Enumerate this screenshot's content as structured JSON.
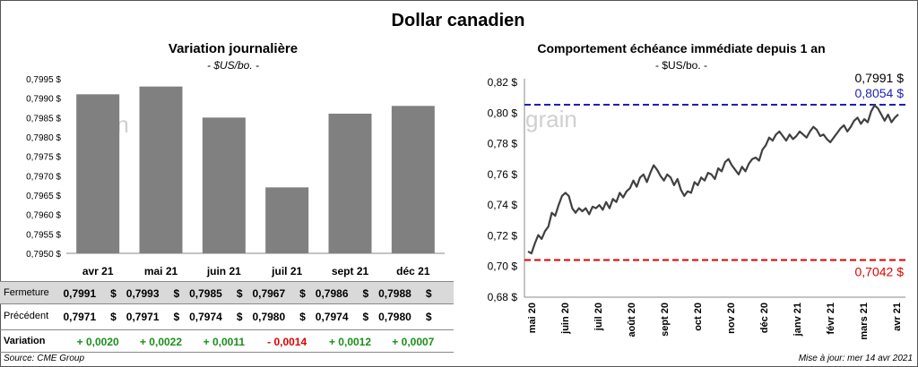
{
  "page": {
    "title": "Dollar canadien",
    "source": "Source: CME Group",
    "updated": "Mise à jour: mer 14 avr 2021"
  },
  "colors": {
    "bar": "#808080",
    "line": "#404040",
    "high": "#1f1fb4",
    "low": "#e00000",
    "positive": "#1a8f1a",
    "negative": "#e00000",
    "table_highlight": "#d9d9d9"
  },
  "chart_data": [
    {
      "type": "bar",
      "title": "Variation  journalière",
      "subtitle": "- $US/bo. -",
      "categories": [
        "avr 21",
        "mai 21",
        "juin 21",
        "juil 21",
        "sept 21",
        "déc 21"
      ],
      "values": [
        0.7991,
        0.7993,
        0.7985,
        0.7967,
        0.7986,
        0.7988
      ],
      "ylim": [
        0.795,
        0.7995
      ],
      "yticks": [
        "0,7950 $",
        "0,7955 $",
        "0,7960 $",
        "0,7965 $",
        "0,7970 $",
        "0,7975 $",
        "0,7980 $",
        "0,7985 $",
        "0,7990 $",
        "0,7995 $"
      ],
      "grid": false
    },
    {
      "type": "line",
      "title": "Comportement échéance immédiate depuis 1 an",
      "subtitle": "- $US/bo. -",
      "x_labels": [
        "mai 20",
        "juin 20",
        "juil 20",
        "août 20",
        "sept 20",
        "oct 20",
        "nov 20",
        "déc 20",
        "janv 21",
        "févr 21",
        "mars 21",
        "avr 21"
      ],
      "values": [
        0.7098,
        0.7085,
        0.715,
        0.7205,
        0.718,
        0.723,
        0.726,
        0.735,
        0.733,
        0.74,
        0.746,
        0.748,
        0.746,
        0.738,
        0.735,
        0.738,
        0.736,
        0.738,
        0.734,
        0.739,
        0.738,
        0.74,
        0.737,
        0.742,
        0.738,
        0.744,
        0.742,
        0.748,
        0.745,
        0.749,
        0.751,
        0.756,
        0.752,
        0.758,
        0.76,
        0.755,
        0.761,
        0.766,
        0.763,
        0.759,
        0.756,
        0.76,
        0.758,
        0.753,
        0.757,
        0.75,
        0.746,
        0.749,
        0.748,
        0.755,
        0.753,
        0.758,
        0.756,
        0.761,
        0.76,
        0.757,
        0.764,
        0.762,
        0.768,
        0.77,
        0.766,
        0.763,
        0.76,
        0.765,
        0.762,
        0.767,
        0.77,
        0.771,
        0.769,
        0.776,
        0.779,
        0.784,
        0.782,
        0.786,
        0.788,
        0.785,
        0.782,
        0.786,
        0.783,
        0.785,
        0.788,
        0.786,
        0.784,
        0.788,
        0.791,
        0.789,
        0.785,
        0.786,
        0.783,
        0.781,
        0.784,
        0.787,
        0.79,
        0.792,
        0.788,
        0.791,
        0.795,
        0.797,
        0.793,
        0.796,
        0.794,
        0.801,
        0.805,
        0.803,
        0.799,
        0.795,
        0.799,
        0.794,
        0.797,
        0.7991
      ],
      "ylim": [
        0.68,
        0.82
      ],
      "yticks": [
        "0,68 $",
        "0,70 $",
        "0,72 $",
        "0,74 $",
        "0,76 $",
        "0,78 $",
        "0,80 $",
        "0,82 $"
      ],
      "high": 0.8054,
      "low": 0.7042,
      "last": 0.7991,
      "high_label": "0,8054 $",
      "low_label": "0,7042 $",
      "last_label": "0,7991 $",
      "grid": false
    }
  ],
  "table": {
    "rows": [
      {
        "label": "Fermeture",
        "values": [
          "0,7991",
          "0,7993",
          "0,7985",
          "0,7967",
          "0,7986",
          "0,7988"
        ],
        "unit": "$"
      },
      {
        "label": "Précédent",
        "values": [
          "0,7971",
          "0,7971",
          "0,7974",
          "0,7980",
          "0,7974",
          "0,7980"
        ],
        "unit": "$"
      },
      {
        "label": "Variation",
        "values": [
          "+ 0,0020",
          "+ 0,0022",
          "+ 0,0011",
          "- 0,0014",
          "+ 0,0012",
          "+ 0,0007"
        ],
        "signs": [
          "positive",
          "positive",
          "positive",
          "negative",
          "positive",
          "positive"
        ]
      }
    ]
  }
}
